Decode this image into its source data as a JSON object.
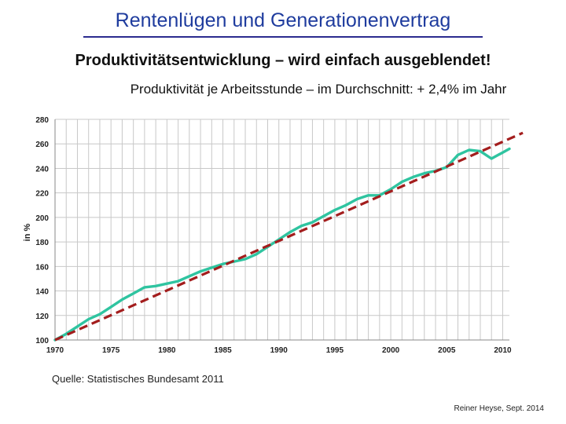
{
  "slide": {
    "title": "Rentenlügen und Generationenvertrag",
    "subtitle": "Produktivitätsentwicklung – wird einfach ausgeblendet!",
    "source": "Quelle: Statistisches Bundesamt 2011",
    "author": "Reiner Heyse, Sept. 2014"
  },
  "colors": {
    "title": "#1f3c9e",
    "actual_line": "#2fc4a0",
    "trend_line": "#a31d1d",
    "grid": "#c8c8c8"
  },
  "chart_data": {
    "type": "line",
    "title": "Produktivität je Arbeitsstunde – im Durchschnitt: + 2,4% im Jahr",
    "xlabel": "",
    "ylabel": "in %",
    "xlim": [
      1970,
      2010.6
    ],
    "ylim": [
      100,
      280
    ],
    "x_ticks": [
      1970,
      1975,
      1980,
      1985,
      1990,
      1995,
      2000,
      2005,
      2010
    ],
    "y_ticks": [
      100,
      120,
      140,
      160,
      180,
      200,
      220,
      240,
      260,
      280
    ],
    "grid": true,
    "series": [
      {
        "name": "Produktivität je Arbeitsstunde",
        "style": "solid",
        "x": [
          1970,
          1971,
          1972,
          1973,
          1974,
          1975,
          1976,
          1977,
          1978,
          1979,
          1980,
          1981,
          1982,
          1983,
          1984,
          1985,
          1986,
          1987,
          1988,
          1989,
          1990,
          1991,
          1992,
          1993,
          1994,
          1995,
          1996,
          1997,
          1998,
          1999,
          2000,
          2001,
          2002,
          2003,
          2004,
          2005,
          2006,
          2007,
          2008,
          2009,
          2010,
          2010.6
        ],
        "values": [
          100,
          105,
          111,
          117,
          121,
          127,
          133,
          138,
          143,
          144,
          146,
          148,
          152,
          156,
          159,
          162,
          164,
          166,
          170,
          176,
          182,
          188,
          193,
          196,
          201,
          206,
          210,
          215,
          218,
          218,
          223,
          229,
          233,
          236,
          238,
          241,
          251,
          255,
          254,
          248,
          253,
          256
        ]
      },
      {
        "name": "Durchschnitt + 2,4% im Jahr",
        "style": "dashed",
        "x": [
          1970,
          2011.8
        ],
        "values": [
          100,
          269
        ]
      }
    ]
  }
}
